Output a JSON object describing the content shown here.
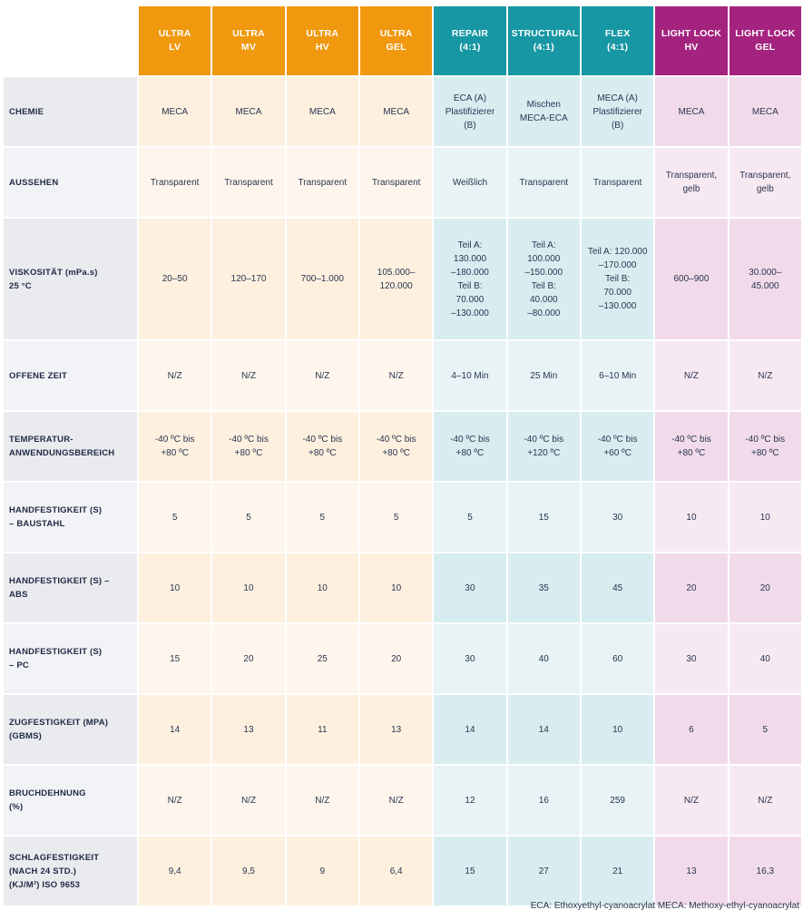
{
  "columns": [
    {
      "label": "ULTRA\nLV"
    },
    {
      "label": "ULTRA\nMV"
    },
    {
      "label": "ULTRA\nHV"
    },
    {
      "label": "ULTRA\nGEL"
    },
    {
      "label": "REPAIR\n(4:1)"
    },
    {
      "label": "STRUCTURAL\n(4:1)"
    },
    {
      "label": "FLEX\n(4:1)"
    },
    {
      "label": "LIGHT LOCK\nHV"
    },
    {
      "label": "LIGHT LOCK\nGEL"
    }
  ],
  "rows": [
    {
      "label": "CHEMIE",
      "cells": [
        "MECA",
        "MECA",
        "MECA",
        "MECA",
        "ECA (A)\nPlastifizierer\n(B)",
        "Mischen\nMECA-ECA",
        "MECA (A)\nPlastifizierer\n(B)",
        "MECA",
        "MECA"
      ]
    },
    {
      "label": "AUSSEHEN",
      "cells": [
        "Transparent",
        "Transparent",
        "Transparent",
        "Transparent",
        "Weißlich",
        "Transparent",
        "Transparent",
        "Transparent,\ngelb",
        "Transparent,\ngelb"
      ]
    },
    {
      "label": "VISKOSITÄT (mPa.s)\n25 °C",
      "cells": [
        "20–50",
        "120–170",
        "700–1.000",
        "105.000–\n120.000",
        "Teil A:\n130.000\n–180.000\nTeil B:\n70.000\n–130.000",
        "Teil A:\n100.000\n–150.000\nTeil B:\n40.000\n–80.000",
        "Teil A: 120.000\n–170.000\nTeil B:\n70.000\n–130.000",
        "600–900",
        "30.000–\n45.000"
      ]
    },
    {
      "label": "OFFENE ZEIT",
      "cells": [
        "N/Z",
        "N/Z",
        "N/Z",
        "N/Z",
        "4–10 Min",
        "25 Min",
        "6–10 Min",
        "N/Z",
        "N/Z"
      ]
    },
    {
      "label": "TEMPERATUR-\nANWENDUNGSBEREICH",
      "cells": [
        "-40 ºC bis\n+80 ºC",
        "-40 ºC bis\n+80 ºC",
        "-40 ºC bis\n+80 ºC",
        "-40 ºC bis\n+80 ºC",
        "-40 ºC bis\n+80 ºC",
        "-40 ºC bis\n+120 ºC",
        "-40 ºC bis\n+60 ºC",
        "-40 ºC bis\n+80 ºC",
        "-40 ºC bis\n+80 ºC"
      ]
    },
    {
      "label": "HANDFESTIGKEIT (S)\n– BAUSTAHL",
      "cells": [
        "5",
        "5",
        "5",
        "5",
        "5",
        "15",
        "30",
        "10",
        "10"
      ]
    },
    {
      "label": "HANDFESTIGKEIT (S) –\nABS",
      "cells": [
        "10",
        "10",
        "10",
        "10",
        "30",
        "35",
        "45",
        "20",
        "20"
      ]
    },
    {
      "label": "HANDFESTIGKEIT (S)\n– PC",
      "cells": [
        "15",
        "20",
        "25",
        "20",
        "30",
        "40",
        "60",
        "30",
        "40"
      ]
    },
    {
      "label": "ZUGFESTIGKEIT (MPA)\n(GBMS)",
      "cells": [
        "14",
        "13",
        "11",
        "13",
        "14",
        "14",
        "10",
        "6",
        "5"
      ]
    },
    {
      "label": "BRUCHDEHNUNG\n(%)",
      "cells": [
        "N/Z",
        "N/Z",
        "N/Z",
        "N/Z",
        "12",
        "16",
        "259",
        "N/Z",
        "N/Z"
      ]
    },
    {
      "label": "SCHLAGFESTIGKEIT\n(NACH 24 STD.)\n(KJ/M²) ISO 9653",
      "cells": [
        "9,4",
        "9,5",
        "9",
        "6,4",
        "15",
        "27",
        "21",
        "13",
        "16,3"
      ]
    }
  ],
  "footnote": "ECA: Ethoxyethyl-cyanoacrylat   MECA: Methoxy-ethyl-cyanoacrylat",
  "colors": {
    "orange": "#f0980e",
    "teal": "#1697a3",
    "purple": "#a4237f"
  }
}
